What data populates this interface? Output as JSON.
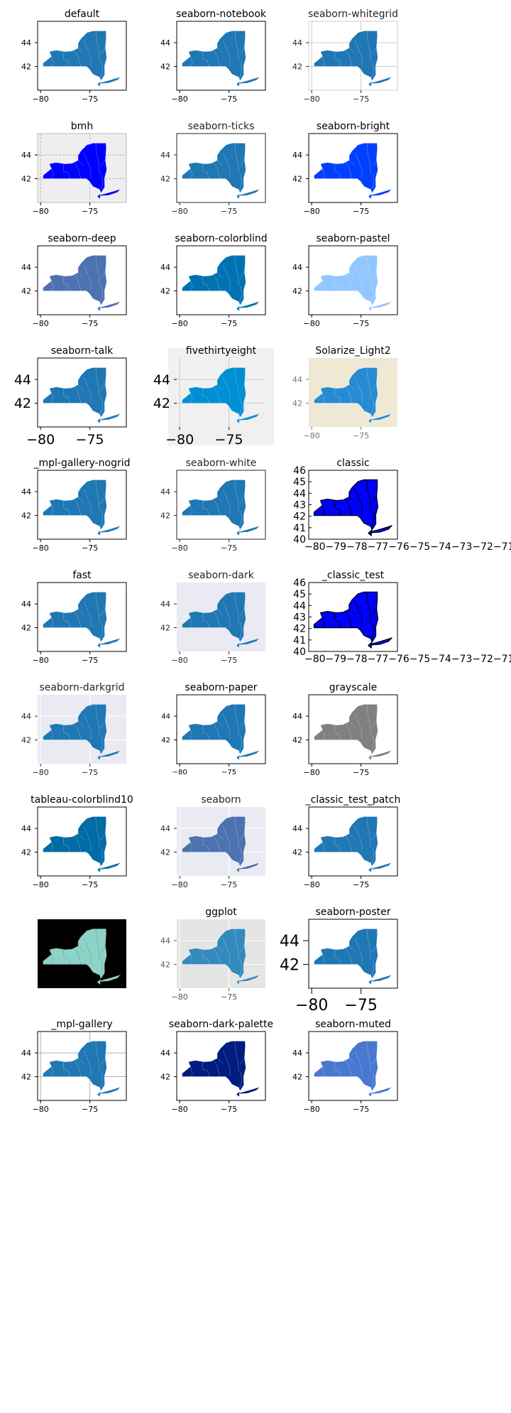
{
  "chart_data": [
    {
      "type": "map",
      "title": "default",
      "style": {
        "face": "#ffffff",
        "fill": "#1f77b4",
        "edge": "#ffffff",
        "spine": "#000000",
        "text": "#000000",
        "title": "#000000",
        "grid": null
      }
    },
    {
      "type": "map",
      "title": "seaborn-notebook",
      "style": {
        "face": "#ffffff",
        "fill": "#1f77b4",
        "edge": "#ffffff",
        "spine": "#000000",
        "text": "#000000",
        "title": "#000000",
        "grid": null
      }
    },
    {
      "type": "map",
      "title": "seaborn-whitegrid",
      "style": {
        "face": "#ffffff",
        "fill": "#1f77b4",
        "edge": "#ffffff",
        "spine": "#cccccc",
        "text": "#262626",
        "title": "#262626",
        "grid": "#cccccc"
      }
    },
    {
      "type": "map",
      "title": "bmh",
      "style": {
        "face": "#eeeeee",
        "fill": "#0000ff",
        "edge": "#ffffff",
        "spine": "#bcbcbc",
        "text": "#000000",
        "title": "#000000",
        "grid": "#b2b2b2",
        "gridDash": "3,2"
      }
    },
    {
      "type": "map",
      "title": "seaborn-ticks",
      "style": {
        "face": "#ffffff",
        "fill": "#1f77b4",
        "edge": "#ffffff",
        "spine": "#262626",
        "text": "#262626",
        "title": "#262626",
        "grid": null
      }
    },
    {
      "type": "map",
      "title": "seaborn-bright",
      "style": {
        "face": "#ffffff",
        "fill": "#003fff",
        "edge": "#ffffff",
        "spine": "#000000",
        "text": "#000000",
        "title": "#000000",
        "grid": null
      }
    },
    {
      "type": "map",
      "title": "seaborn-deep",
      "style": {
        "face": "#ffffff",
        "fill": "#4c72b0",
        "edge": "#ffffff",
        "spine": "#000000",
        "text": "#000000",
        "title": "#000000",
        "grid": null
      }
    },
    {
      "type": "map",
      "title": "seaborn-colorblind",
      "style": {
        "face": "#ffffff",
        "fill": "#0072b2",
        "edge": "#ffffff",
        "spine": "#000000",
        "text": "#000000",
        "title": "#000000",
        "grid": null
      }
    },
    {
      "type": "map",
      "title": "seaborn-pastel",
      "style": {
        "face": "#ffffff",
        "fill": "#92c6ff",
        "edge": "#ffffff",
        "spine": "#000000",
        "text": "#000000",
        "title": "#000000",
        "grid": null
      }
    },
    {
      "type": "map",
      "title": "seaborn-talk",
      "style": {
        "face": "#ffffff",
        "fill": "#1f77b4",
        "edge": "#ffffff",
        "spine": "#000000",
        "text": "#000000",
        "title": "#000000",
        "grid": null,
        "tickFont": 19
      }
    },
    {
      "type": "map",
      "title": "fivethirtyeight",
      "style": {
        "face": "#f0f0f0",
        "fill": "#008fd5",
        "edge": "#f0f0f0",
        "spine": null,
        "text": "#000000",
        "title": "#000000",
        "grid": "#cbcbcb",
        "tickFont": 19,
        "bg": "#f0f0f0"
      }
    },
    {
      "type": "map",
      "title": "Solarize_Light2",
      "style": {
        "face": "#eee8d5",
        "fill": "#268bd2",
        "edge": "#ffffff",
        "spine": null,
        "text": "#657b83",
        "title": "#000000",
        "grid": null
      }
    },
    {
      "type": "map",
      "title": "_mpl-gallery-nogrid",
      "style": {
        "face": "#ffffff",
        "fill": "#1f77b4",
        "edge": "#ffffff",
        "spine": "#000000",
        "text": "#000000",
        "title": "#000000",
        "grid": null
      }
    },
    {
      "type": "map",
      "title": "seaborn-white",
      "style": {
        "face": "#ffffff",
        "fill": "#1f77b4",
        "edge": "#ffffff",
        "spine": "#262626",
        "text": "#262626",
        "title": "#262626",
        "grid": null
      }
    },
    {
      "type": "map",
      "title": "classic",
      "style": {
        "face": "#ffffff",
        "fill": "#0000ff",
        "edge": "#000000",
        "spine": "#000000",
        "text": "#000000",
        "title": "#000000",
        "grid": null,
        "classic": true
      },
      "yticks": [
        "40",
        "41",
        "42",
        "43",
        "44",
        "45",
        "46"
      ],
      "xticks_text": "−80−79−78−77−76−75−74−73−72−71"
    },
    {
      "type": "map",
      "title": "fast",
      "style": {
        "face": "#ffffff",
        "fill": "#1f77b4",
        "edge": "#ffffff",
        "spine": "#000000",
        "text": "#000000",
        "title": "#000000",
        "grid": null
      }
    },
    {
      "type": "map",
      "title": "seaborn-dark",
      "style": {
        "face": "#eaeaf2",
        "fill": "#1f77b4",
        "edge": "#ffffff",
        "spine": null,
        "text": "#262626",
        "title": "#262626",
        "grid": null
      }
    },
    {
      "type": "map",
      "title": "_classic_test",
      "style": {
        "face": "#ffffff",
        "fill": "#0000ff",
        "edge": "#000000",
        "spine": "#000000",
        "text": "#000000",
        "title": "#000000",
        "grid": null,
        "classic": true
      },
      "yticks": [
        "40",
        "41",
        "42",
        "43",
        "44",
        "45",
        "46"
      ],
      "xticks_text": "−80−79−78−77−76−75−74−73−72−71"
    },
    {
      "type": "map",
      "title": "seaborn-darkgrid",
      "style": {
        "face": "#eaeaf2",
        "fill": "#1f77b4",
        "edge": "#ffffff",
        "spine": null,
        "text": "#262626",
        "title": "#262626",
        "grid": "#ffffff"
      }
    },
    {
      "type": "map",
      "title": "seaborn-paper",
      "style": {
        "face": "#ffffff",
        "fill": "#1f77b4",
        "edge": "#ffffff",
        "spine": "#000000",
        "text": "#000000",
        "title": "#000000",
        "grid": null,
        "tickFont": 10
      }
    },
    {
      "type": "map",
      "title": "grayscale",
      "style": {
        "face": "#ffffff",
        "fill": "#808080",
        "edge": "#ffffff",
        "spine": "#000000",
        "text": "#000000",
        "title": "#000000",
        "grid": null
      }
    },
    {
      "type": "map",
      "title": "tableau-colorblind10",
      "style": {
        "face": "#ffffff",
        "fill": "#006ba4",
        "edge": "#ffffff",
        "spine": "#000000",
        "text": "#000000",
        "title": "#000000",
        "grid": null
      }
    },
    {
      "type": "map",
      "title": "seaborn",
      "style": {
        "face": "#eaeaf2",
        "fill": "#4c72b0",
        "edge": "#ffffff",
        "spine": null,
        "text": "#262626",
        "title": "#262626",
        "grid": "#ffffff"
      }
    },
    {
      "type": "map",
      "title": "_classic_test_patch",
      "style": {
        "face": "#ffffff",
        "fill": "#1f77b4",
        "edge": "#ffffff",
        "spine": "#000000",
        "text": "#000000",
        "title": "#000000",
        "grid": null
      }
    },
    {
      "type": "map",
      "title": "",
      "style": {
        "face": "#000000",
        "fill": "#8dd3c7",
        "edge": "#444444",
        "spine": null,
        "text": "#000000",
        "title": "#000000",
        "grid": null,
        "noAxes": true
      }
    },
    {
      "type": "map",
      "title": "ggplot",
      "style": {
        "face": "#e5e5e5",
        "fill": "#348abd",
        "edge": "#ffffff",
        "spine": null,
        "text": "#555555",
        "title": "#000000",
        "grid": "#ffffff"
      }
    },
    {
      "type": "map",
      "title": "seaborn-poster",
      "style": {
        "face": "#ffffff",
        "fill": "#1f77b4",
        "edge": "#ffffff",
        "spine": "#000000",
        "text": "#000000",
        "title": "#000000",
        "grid": null,
        "tickFont": 22,
        "tickLen": 8
      }
    },
    {
      "type": "map",
      "title": "_mpl-gallery",
      "style": {
        "face": "#ffffff",
        "fill": "#1f77b4",
        "edge": "#ffffff",
        "spine": "#000000",
        "text": "#000000",
        "title": "#000000",
        "grid": "#b0b0b0"
      }
    },
    {
      "type": "map",
      "title": "seaborn-dark-palette",
      "style": {
        "face": "#ffffff",
        "fill": "#001c7f",
        "edge": "#ffffff",
        "spine": "#000000",
        "text": "#000000",
        "title": "#000000",
        "grid": null
      }
    },
    {
      "type": "map",
      "title": "seaborn-muted",
      "style": {
        "face": "#ffffff",
        "fill": "#4878cf",
        "edge": "#ffffff",
        "spine": "#000000",
        "text": "#000000",
        "title": "#000000",
        "grid": null
      }
    }
  ],
  "axes": {
    "xticks": [
      "−80",
      "−75"
    ],
    "yticks": [
      "42",
      "44"
    ]
  }
}
